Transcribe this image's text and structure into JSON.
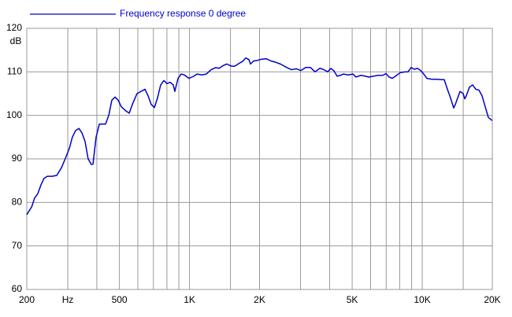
{
  "chart_data": {
    "type": "line",
    "legend_loc": "top-left",
    "log_x": true,
    "grid": true,
    "y_label": "dB",
    "xlim": [
      200,
      20000
    ],
    "ylim": [
      60,
      120
    ],
    "xticks": [
      200,
      {
        "value": 300,
        "label": "Hz"
      },
      500,
      {
        "value": 1000,
        "label": "1K"
      },
      {
        "value": 2000,
        "label": "2K"
      },
      {
        "value": 5000,
        "label": "5K"
      },
      {
        "value": 10000,
        "label": "10K"
      },
      {
        "value": 20000,
        "label": "20K"
      }
    ],
    "xminor": [
      400,
      600,
      700,
      800,
      900,
      1500,
      3000,
      4000,
      6000,
      7000,
      8000,
      9000,
      15000
    ],
    "yticks": [
      60,
      70,
      80,
      90,
      100,
      110,
      120
    ],
    "x": [
      200,
      210,
      216,
      223,
      230,
      237,
      245,
      257,
      269,
      282,
      295,
      305,
      314,
      324,
      335,
      345,
      356,
      367,
      379,
      385,
      397,
      410,
      423,
      436,
      450,
      464,
      479,
      494,
      509,
      534,
      551,
      568,
      595,
      624,
      644,
      664,
      685,
      707,
      729,
      752,
      776,
      801,
      826,
      852,
      865,
      893,
      921,
      950,
      996,
      1043,
      1077,
      1128,
      1182,
      1239,
      1298,
      1339,
      1403,
      1448,
      1517,
      1565,
      1640,
      1692,
      1745,
      1800,
      1829,
      1886,
      1946,
      2039,
      2138,
      2240,
      2347,
      2459,
      2618,
      2743,
      2874,
      3012,
      3156,
      3307,
      3465,
      3631,
      3746,
      3925,
      4050,
      4178,
      4309,
      4446,
      4586,
      4805,
      5035,
      5195,
      5444,
      5705,
      5886,
      6167,
      6462,
      6771,
      6986,
      7207,
      7435,
      7670,
      8038,
      8422,
      8689,
      8963,
      9247,
      9540,
      9842,
      10150,
      10470,
      10980,
      11500,
      12050,
      12430,
      12830,
      13230,
      13650,
      13870,
      14530,
      14990,
      15230,
      15460,
      15960,
      16460,
      16980,
      17520,
      18070,
      18640,
      19240,
      20000
    ],
    "series": [
      {
        "name": "Frequency response 0 degree",
        "color": "#0000cc",
        "values": [
          77.2,
          79,
          81,
          82,
          84,
          85.5,
          86,
          86,
          86.2,
          88,
          90.5,
          92.5,
          95,
          96.5,
          97,
          96,
          94,
          90,
          88.7,
          88.8,
          95,
          98,
          98,
          98,
          100,
          103.5,
          104.2,
          103.5,
          102,
          101,
          100.5,
          102.5,
          105,
          105.6,
          106,
          104.5,
          102.5,
          101.8,
          104,
          107,
          108,
          107.3,
          107.6,
          107,
          105.5,
          108.5,
          109.5,
          109.3,
          108.5,
          109,
          109.5,
          109.3,
          109.5,
          110.5,
          111,
          110.8,
          111.5,
          111.8,
          111.3,
          111.3,
          112,
          112.4,
          113.2,
          112.8,
          111.8,
          112.5,
          112.6,
          112.9,
          113,
          112.5,
          112.2,
          111.8,
          111,
          110.5,
          110.7,
          110.3,
          111,
          111,
          110,
          110.8,
          110.6,
          110,
          110.8,
          110.2,
          109,
          109.2,
          109.5,
          109.3,
          109.5,
          108.8,
          109.2,
          109,
          108.8,
          109,
          109.2,
          109.2,
          109.6,
          108.8,
          108.5,
          109,
          109.8,
          110,
          110,
          111,
          110.6,
          110.8,
          110.3,
          109.5,
          108.5,
          108.3,
          108.3,
          108.2,
          108.2,
          106,
          104,
          101.7,
          102.5,
          105.5,
          105,
          103.8,
          104.5,
          106.5,
          107,
          106,
          105.8,
          104.5,
          102,
          99.5,
          98.8
        ]
      }
    ]
  }
}
